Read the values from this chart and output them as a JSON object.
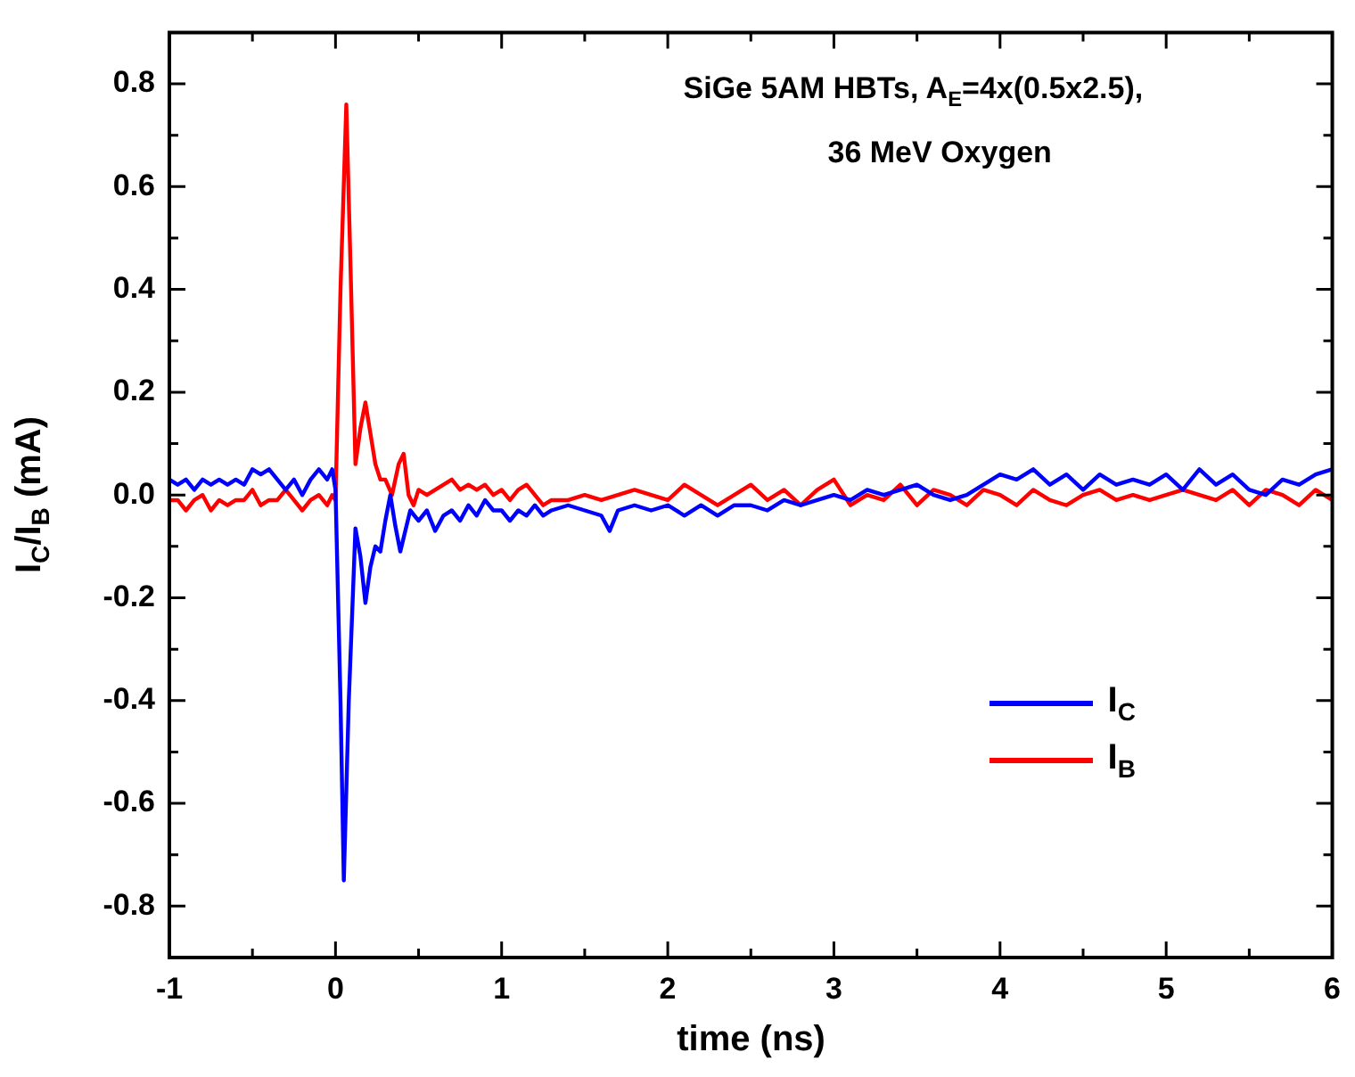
{
  "chart_data": {
    "type": "line",
    "xlabel": "time (ns)",
    "ylabel": "I$_{C}$/I$_{B}$ (mA)",
    "annotations": [
      "SiGe 5AM HBTs, A$_{E}$=4x(0.5x2.5),",
      "36 MeV Oxygen"
    ],
    "xlim": [
      -1,
      6
    ],
    "xticks": [
      -1,
      {
        "value": -0.5,
        "label": null
      },
      0,
      {
        "value": 0.5,
        "label": null
      },
      1,
      {
        "value": 1.5,
        "label": null
      },
      2,
      {
        "value": 2.5,
        "label": null
      },
      3,
      {
        "value": 3.5,
        "label": null
      },
      4,
      {
        "value": 4.5,
        "label": null
      },
      5,
      {
        "value": 5.5,
        "label": null
      },
      6
    ],
    "ylim": [
      -0.9,
      0.9
    ],
    "yticks": [
      -0.8,
      {
        "value": -0.7,
        "label": null
      },
      -0.6,
      {
        "value": -0.5,
        "label": null
      },
      -0.4,
      {
        "value": -0.3,
        "label": null
      },
      -0.2,
      {
        "value": -0.1,
        "label": null
      },
      {
        "value": 0,
        "label": "0.0"
      },
      {
        "value": 0.1,
        "label": null
      },
      0.2,
      {
        "value": 0.3,
        "label": null
      },
      0.4,
      {
        "value": 0.5,
        "label": null
      },
      0.6,
      {
        "value": 0.7,
        "label": null
      },
      0.8
    ],
    "grid": false,
    "legend": "bottom right",
    "marker": "none",
    "line_style": "solid",
    "series": [
      {
        "name": "I$_{C}$",
        "color": "#0000ff",
        "x": [
          -1,
          -0.95,
          -0.9,
          -0.85,
          -0.8,
          -0.75,
          -0.7,
          -0.65,
          -0.6,
          -0.55,
          -0.5,
          -0.45,
          -0.4,
          -0.35,
          -0.3,
          -0.25,
          -0.2,
          -0.15,
          -0.1,
          -0.05,
          -0.02,
          0,
          0.03,
          0.05,
          0.08,
          0.12,
          0.15,
          0.18,
          0.21,
          0.24,
          0.27,
          0.3,
          0.33,
          0.36,
          0.39,
          0.42,
          0.45,
          0.5,
          0.55,
          0.6,
          0.65,
          0.7,
          0.75,
          0.8,
          0.85,
          0.9,
          0.95,
          1,
          1.05,
          1.1,
          1.15,
          1.2,
          1.25,
          1.3,
          1.4,
          1.5,
          1.6,
          1.65,
          1.7,
          1.8,
          1.9,
          2,
          2.1,
          2.2,
          2.3,
          2.4,
          2.5,
          2.6,
          2.7,
          2.8,
          2.9,
          3,
          3.1,
          3.2,
          3.3,
          3.4,
          3.5,
          3.6,
          3.7,
          3.8,
          3.9,
          4,
          4.1,
          4.2,
          4.3,
          4.4,
          4.5,
          4.6,
          4.7,
          4.8,
          4.9,
          5,
          5.1,
          5.2,
          5.3,
          5.4,
          5.5,
          5.6,
          5.7,
          5.8,
          5.9,
          6
        ],
        "values": [
          0.03,
          0.02,
          0.03,
          0.01,
          0.03,
          0.02,
          0.03,
          0.02,
          0.03,
          0.02,
          0.05,
          0.04,
          0.05,
          0.03,
          0.01,
          0.03,
          0,
          0.03,
          0.05,
          0.03,
          0.05,
          0.01,
          -0.4,
          -0.75,
          -0.4,
          -0.065,
          -0.12,
          -0.21,
          -0.14,
          -0.1,
          -0.11,
          -0.05,
          0,
          -0.06,
          -0.11,
          -0.07,
          -0.03,
          -0.05,
          -0.03,
          -0.07,
          -0.04,
          -0.03,
          -0.05,
          -0.02,
          -0.04,
          -0.01,
          -0.03,
          -0.03,
          -0.05,
          -0.03,
          -0.04,
          -0.02,
          -0.04,
          -0.03,
          -0.02,
          -0.03,
          -0.04,
          -0.07,
          -0.03,
          -0.02,
          -0.03,
          -0.02,
          -0.04,
          -0.02,
          -0.04,
          -0.02,
          -0.02,
          -0.03,
          -0.01,
          -0.02,
          -0.01,
          0,
          -0.01,
          0.01,
          0,
          0.01,
          0.02,
          0,
          -0.01,
          0,
          0.02,
          0.04,
          0.03,
          0.05,
          0.02,
          0.04,
          0.01,
          0.04,
          0.02,
          0.03,
          0.02,
          0.04,
          0.01,
          0.05,
          0.02,
          0.04,
          0.01,
          0,
          0.03,
          0.02,
          0.04,
          0.05
        ]
      },
      {
        "name": "I$_{B}$",
        "color": "#ff0000",
        "x": [
          -1,
          -0.95,
          -0.9,
          -0.85,
          -0.8,
          -0.75,
          -0.7,
          -0.65,
          -0.6,
          -0.55,
          -0.5,
          -0.45,
          -0.4,
          -0.35,
          -0.3,
          -0.25,
          -0.2,
          -0.15,
          -0.1,
          -0.05,
          -0.02,
          0,
          0.03,
          0.065,
          0.09,
          0.12,
          0.15,
          0.18,
          0.21,
          0.24,
          0.27,
          0.3,
          0.34,
          0.38,
          0.41,
          0.44,
          0.47,
          0.5,
          0.55,
          0.6,
          0.7,
          0.75,
          0.8,
          0.85,
          0.9,
          0.95,
          1,
          1.05,
          1.1,
          1.15,
          1.2,
          1.25,
          1.3,
          1.4,
          1.5,
          1.6,
          1.7,
          1.8,
          1.9,
          2,
          2.1,
          2.2,
          2.3,
          2.4,
          2.5,
          2.6,
          2.7,
          2.8,
          2.9,
          3,
          3.1,
          3.2,
          3.3,
          3.4,
          3.5,
          3.6,
          3.7,
          3.8,
          3.9,
          4,
          4.1,
          4.2,
          4.3,
          4.4,
          4.5,
          4.6,
          4.7,
          4.8,
          4.9,
          5,
          5.1,
          5.2,
          5.3,
          5.4,
          5.5,
          5.6,
          5.7,
          5.8,
          5.9,
          6
        ],
        "values": [
          -0.01,
          -0.01,
          -0.03,
          -0.01,
          0,
          -0.03,
          -0.01,
          -0.02,
          -0.01,
          -0.01,
          0.01,
          -0.02,
          -0.01,
          -0.01,
          0.01,
          -0.01,
          -0.03,
          -0.01,
          0,
          -0.02,
          0,
          -0.01,
          0.4,
          0.76,
          0.45,
          0.06,
          0.13,
          0.18,
          0.12,
          0.06,
          0.03,
          0.03,
          0,
          0.06,
          0.08,
          0,
          -0.02,
          0.01,
          0,
          0.01,
          0.03,
          0.01,
          0.02,
          0.01,
          0.02,
          0,
          0.01,
          -0.01,
          0.01,
          0.02,
          0,
          -0.02,
          -0.01,
          -0.01,
          0,
          -0.01,
          0,
          0.01,
          0,
          -0.01,
          0.02,
          0,
          -0.02,
          0,
          0.02,
          -0.01,
          0.01,
          -0.02,
          0.01,
          0.03,
          -0.02,
          0,
          -0.01,
          0.02,
          -0.02,
          0.01,
          0,
          -0.02,
          0.01,
          0,
          -0.02,
          0.01,
          -0.01,
          -0.02,
          0,
          0.01,
          -0.01,
          0,
          -0.01,
          0,
          0.01,
          0,
          -0.01,
          0.01,
          -0.02,
          0.01,
          0,
          -0.02,
          0.01,
          -0.01
        ]
      }
    ]
  }
}
